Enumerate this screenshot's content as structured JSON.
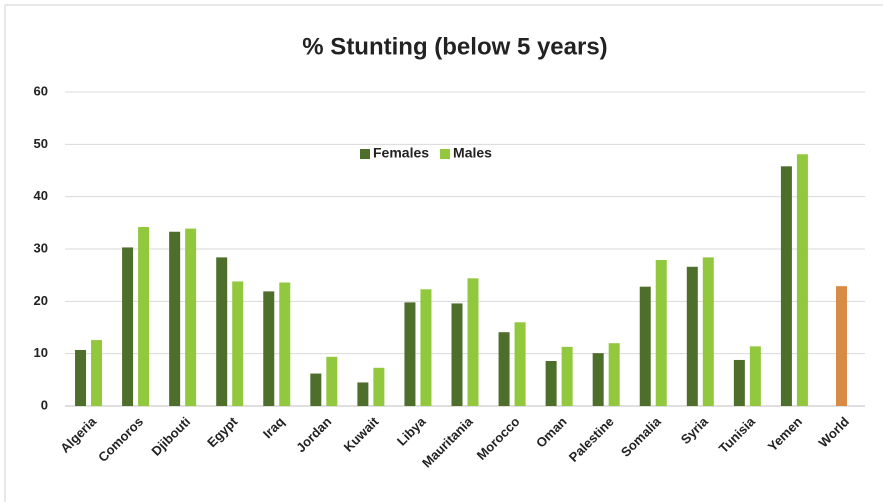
{
  "chart_data": {
    "type": "bar",
    "title": "% Stunting (below 5 years)",
    "categories": [
      "Algeria",
      "Comoros",
      "Djibouti",
      "Egypt",
      "Iraq",
      "Jordan",
      "Kuwait",
      "Libya",
      "Mauritania",
      "Morocco",
      "Oman",
      "Palestine",
      "Somalia",
      "Syria",
      "Tunisia",
      "Yemen",
      "World"
    ],
    "series": [
      {
        "name": "Females",
        "color": "#4e6e2b",
        "point_colors": [
          "#4e6e2b",
          "#4e6e2b",
          "#4e6e2b",
          "#4e6e2b",
          "#4e6e2b",
          "#4e6e2b",
          "#4e6e2b",
          "#4e6e2b",
          "#4e6e2b",
          "#4e6e2b",
          "#4e6e2b",
          "#4e6e2b",
          "#4e6e2b",
          "#4e6e2b",
          "#4e6e2b",
          "#4e6e2b",
          "#d98b45"
        ],
        "values": [
          10.7,
          30.3,
          33.3,
          28.4,
          21.9,
          6.2,
          4.5,
          19.8,
          19.6,
          14.1,
          8.6,
          10.1,
          22.8,
          26.6,
          8.8,
          45.8,
          22.9
        ]
      },
      {
        "name": "Males",
        "color": "#92c83e",
        "values": [
          12.6,
          34.2,
          33.9,
          23.8,
          23.6,
          9.4,
          7.3,
          22.3,
          24.4,
          16.0,
          11.3,
          12.0,
          27.9,
          28.4,
          11.4,
          48.1,
          null
        ]
      }
    ],
    "ylim": [
      0,
      60
    ],
    "yticks": [
      0,
      10,
      20,
      30,
      40,
      50,
      60
    ],
    "grid": true,
    "legend": "top"
  }
}
